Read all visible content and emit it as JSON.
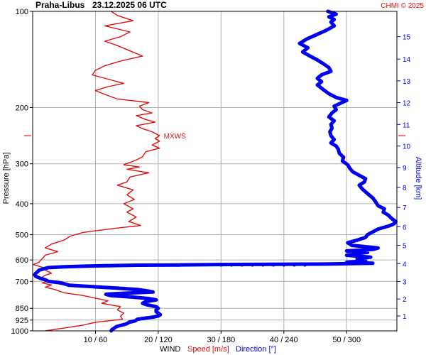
{
  "header": {
    "station": "Praha-Libus",
    "datetime": "23.12.2025 06 UTC",
    "copyright": "CHMI © 2025"
  },
  "colors": {
    "speed": "#e01010",
    "direction": "#0000ee",
    "grid": "#b0b0b0",
    "text": "#000000"
  },
  "chart_data": {
    "type": "line",
    "ylabel_left": "Pressure [hPa]",
    "ylabel_right": "Altitude [km]",
    "xlabel": {
      "prefix": "WIND",
      "speed": "Speed [m/s]",
      "direction": "Direction [°]"
    },
    "pressure_scale": "log",
    "pressure_range": [
      100,
      1000
    ],
    "pressure_ticks": [
      "100",
      "200",
      "300",
      "400",
      "500",
      "600",
      "700",
      "850",
      "925",
      "1000"
    ],
    "pressure_tick_values": [
      100,
      200,
      300,
      400,
      500,
      600,
      700,
      850,
      925,
      1000
    ],
    "altitude_ticks": [
      "1",
      "2",
      "3",
      "4",
      "5",
      "6",
      "7",
      "8",
      "9",
      "10",
      "11",
      "12",
      "13",
      "14",
      "15"
    ],
    "altitude_tick_pressures": [
      898,
      795,
      701,
      616,
      540,
      472,
      411,
      356,
      308,
      264,
      226,
      193,
      165,
      141,
      120
    ],
    "x_ticks": [
      "10 / 60",
      "20 / 120",
      "30 / 180",
      "40 / 240",
      "50 / 300"
    ],
    "x_tick_speeds": [
      10,
      20,
      30,
      40,
      50
    ],
    "speed_range": [
      0,
      58
    ],
    "direction_range": [
      0,
      348
    ],
    "mxws": {
      "label": "MXWS",
      "pressure": 245,
      "speed": 20.2
    },
    "series": [
      {
        "name": "Speed [m/s]",
        "unit": "m/s",
        "points": [
          [
            100,
            12.5
          ],
          [
            103,
            13.5
          ],
          [
            107,
            16
          ],
          [
            111,
            11.5
          ],
          [
            116,
            15.5
          ],
          [
            120,
            14
          ],
          [
            124,
            11.5
          ],
          [
            128,
            13.5
          ],
          [
            133,
            15.5
          ],
          [
            138,
            17.5
          ],
          [
            143,
            14
          ],
          [
            148,
            11.5
          ],
          [
            153,
            10
          ],
          [
            158,
            9.5
          ],
          [
            163,
            12
          ],
          [
            168,
            14.5
          ],
          [
            172,
            12
          ],
          [
            177,
            10
          ],
          [
            182,
            11.5
          ],
          [
            188,
            13.5
          ],
          [
            193,
            18.5
          ],
          [
            198,
            17
          ],
          [
            203,
            17.5
          ],
          [
            208,
            19
          ],
          [
            212,
            16.5
          ],
          [
            218,
            18
          ],
          [
            222,
            19.5
          ],
          [
            228,
            16.5
          ],
          [
            233,
            17.5
          ],
          [
            238,
            19
          ],
          [
            245,
            20.2
          ],
          [
            250,
            19.5
          ],
          [
            255,
            20.2
          ],
          [
            262,
            19
          ],
          [
            268,
            20.2
          ],
          [
            275,
            18
          ],
          [
            285,
            17.5
          ],
          [
            292,
            16.5
          ],
          [
            302,
            14.5
          ],
          [
            307,
            17
          ],
          [
            312,
            15
          ],
          [
            320,
            18.5
          ],
          [
            330,
            15.5
          ],
          [
            342,
            15
          ],
          [
            350,
            13.5
          ],
          [
            362,
            16
          ],
          [
            375,
            15
          ],
          [
            388,
            16.2
          ],
          [
            400,
            14.5
          ],
          [
            415,
            16
          ],
          [
            425,
            15
          ],
          [
            440,
            16.5
          ],
          [
            455,
            15.3
          ],
          [
            468,
            17.2
          ],
          [
            478,
            13
          ],
          [
            492,
            8
          ],
          [
            505,
            6
          ],
          [
            520,
            5
          ],
          [
            535,
            3
          ],
          [
            550,
            2
          ],
          [
            565,
            4
          ],
          [
            580,
            2
          ],
          [
            595,
            1.5
          ],
          [
            610,
            1
          ],
          [
            620,
            0.1
          ],
          [
            632,
            1.5
          ],
          [
            645,
            2
          ],
          [
            660,
            3
          ],
          [
            670,
            2
          ],
          [
            680,
            1.5
          ],
          [
            692,
            2
          ],
          [
            700,
            2.3
          ],
          [
            708,
            1.5
          ],
          [
            718,
            3
          ],
          [
            730,
            2
          ],
          [
            742,
            3.5
          ],
          [
            760,
            5
          ],
          [
            775,
            8
          ],
          [
            790,
            10
          ],
          [
            805,
            12
          ],
          [
            820,
            11
          ],
          [
            840,
            14
          ],
          [
            860,
            13.5
          ],
          [
            880,
            14.5
          ],
          [
            900,
            14
          ],
          [
            920,
            14.3
          ],
          [
            940,
            10
          ],
          [
            960,
            8
          ],
          [
            980,
            5
          ],
          [
            1000,
            2
          ]
        ]
      },
      {
        "name": "Direction [°]",
        "unit": "deg",
        "points": [
          [
            100,
            282
          ],
          [
            102,
            290
          ],
          [
            104,
            283
          ],
          [
            106,
            288
          ],
          [
            108,
            285
          ],
          [
            111,
            288
          ],
          [
            114,
            282
          ],
          [
            118,
            272
          ],
          [
            122,
            262
          ],
          [
            126,
            255
          ],
          [
            130,
            263
          ],
          [
            134,
            258
          ],
          [
            138,
            265
          ],
          [
            142,
            272
          ],
          [
            146,
            278
          ],
          [
            150,
            283
          ],
          [
            154,
            285
          ],
          [
            158,
            276
          ],
          [
            162,
            272
          ],
          [
            166,
            276
          ],
          [
            170,
            272
          ],
          [
            175,
            277
          ],
          [
            181,
            283
          ],
          [
            186,
            290
          ],
          [
            190,
            300
          ],
          [
            194,
            294
          ],
          [
            198,
            288
          ],
          [
            203,
            290
          ],
          [
            208,
            286
          ],
          [
            214,
            283
          ],
          [
            220,
            288
          ],
          [
            226,
            285
          ],
          [
            232,
            286
          ],
          [
            238,
            284
          ],
          [
            245,
            285
          ],
          [
            252,
            288
          ],
          [
            258,
            285
          ],
          [
            264,
            290
          ],
          [
            270,
            292
          ],
          [
            278,
            293
          ],
          [
            286,
            297
          ],
          [
            294,
            296
          ],
          [
            302,
            301
          ],
          [
            310,
            303
          ],
          [
            318,
            306
          ],
          [
            326,
            312
          ],
          [
            334,
            318
          ],
          [
            342,
            317
          ],
          [
            350,
            312
          ],
          [
            360,
            315
          ],
          [
            372,
            320
          ],
          [
            384,
            325
          ],
          [
            396,
            328
          ],
          [
            406,
            330
          ],
          [
            415,
            336
          ],
          [
            425,
            335
          ],
          [
            435,
            340
          ],
          [
            445,
            343
          ],
          [
            455,
            347
          ],
          [
            463,
            345
          ],
          [
            470,
            340
          ],
          [
            480,
            330
          ],
          [
            490,
            325
          ],
          [
            500,
            320
          ],
          [
            510,
            318
          ],
          [
            520,
            310
          ],
          [
            530,
            301
          ],
          [
            540,
            305
          ],
          [
            550,
            330
          ],
          [
            556,
            325
          ],
          [
            562,
            300
          ],
          [
            568,
            320
          ],
          [
            574,
            305
          ],
          [
            580,
            300
          ],
          [
            588,
            323
          ],
          [
            596,
            310
          ],
          [
            604,
            318
          ],
          [
            610,
            300
          ],
          [
            614,
            325
          ],
          [
            618,
            280
          ],
          [
            620,
            175
          ],
          [
            622,
            140
          ],
          [
            623,
            100
          ],
          [
            626,
            60
          ],
          [
            630,
            30
          ],
          [
            634,
            15
          ],
          [
            640,
            10
          ],
          [
            646,
            6
          ],
          [
            652,
            5
          ],
          [
            660,
            3
          ],
          [
            667,
            2
          ],
          [
            675,
            3
          ],
          [
            680,
            5
          ],
          [
            686,
            8
          ],
          [
            692,
            12
          ],
          [
            700,
            15
          ],
          [
            706,
            25
          ],
          [
            712,
            30
          ],
          [
            720,
            35
          ],
          [
            728,
            60
          ],
          [
            735,
            80
          ],
          [
            742,
            100
          ],
          [
            750,
            110
          ],
          [
            756,
            115
          ],
          [
            762,
            90
          ],
          [
            768,
            70
          ],
          [
            776,
            75
          ],
          [
            784,
            95
          ],
          [
            792,
            110
          ],
          [
            800,
            118
          ],
          [
            810,
            108
          ],
          [
            820,
            105
          ],
          [
            830,
            110
          ],
          [
            840,
            118
          ],
          [
            850,
            120
          ],
          [
            860,
            118
          ],
          [
            870,
            118
          ],
          [
            880,
            120
          ],
          [
            890,
            122
          ],
          [
            898,
            120
          ],
          [
            906,
            115
          ],
          [
            912,
            108
          ],
          [
            920,
            100
          ],
          [
            930,
            98
          ],
          [
            940,
            92
          ],
          [
            950,
            90
          ],
          [
            960,
            85
          ],
          [
            970,
            80
          ],
          [
            980,
            78
          ],
          [
            990,
            76
          ],
          [
            1000,
            75
          ]
        ]
      }
    ],
    "direction_gap_points": [
      [
        621,
        180
      ],
      [
        621,
        190
      ],
      [
        621,
        200
      ],
      [
        621,
        210
      ],
      [
        621,
        220
      ],
      [
        621,
        230
      ],
      [
        621,
        240
      ],
      [
        621,
        250
      ],
      [
        621,
        260
      ]
    ]
  }
}
